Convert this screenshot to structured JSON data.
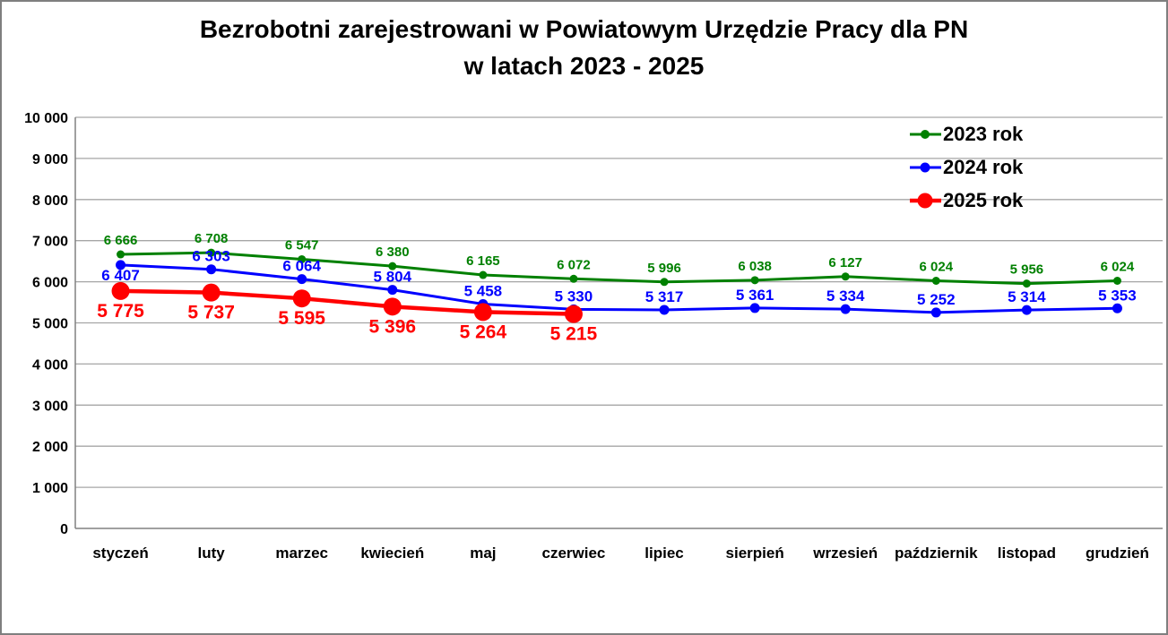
{
  "title": {
    "line1": "Bezrobotni zarejestrowani w Powiatowym Urzędzie Pracy dla PN",
    "line2": "w latach 2023 - 2025"
  },
  "chart_data": {
    "type": "line",
    "title": "Bezrobotni zarejestrowani w Powiatowym Urzędzie Pracy dla PN w latach 2023 - 2025",
    "categories": [
      "styczeń",
      "luty",
      "marzec",
      "kwiecień",
      "maj",
      "czerwiec",
      "lipiec",
      "sierpień",
      "wrzesień",
      "październik",
      "listopad",
      "grudzień"
    ],
    "series": [
      {
        "name": "2023 rok",
        "color": "#008000",
        "values": [
          6666,
          6708,
          6547,
          6380,
          6165,
          6072,
          5996,
          6038,
          6127,
          6024,
          5956,
          6024
        ]
      },
      {
        "name": "2024 rok",
        "color": "#0000ff",
        "values": [
          6407,
          6303,
          6064,
          5804,
          5458,
          5330,
          5317,
          5361,
          5334,
          5252,
          5314,
          5353
        ]
      },
      {
        "name": "2025 rok",
        "color": "#ff0000",
        "values": [
          5775,
          5737,
          5595,
          5396,
          5264,
          5215
        ]
      }
    ],
    "ylim": [
      0,
      10000
    ],
    "ytick_step": 1000,
    "ytick_labels": [
      "0",
      "1 000",
      "2 000",
      "3 000",
      "4 000",
      "5 000",
      "6 000",
      "7 000",
      "8 000",
      "9 000",
      "10 000"
    ],
    "grid": "horizontal",
    "legend_position": "top-right",
    "data_labels": true,
    "number_format": "space-thousands",
    "colors": {
      "gridline": "#a6a6a6",
      "axis": "#808080",
      "tick_label": "#000000",
      "background": "#ffffff",
      "page_border": "#7f7f7f"
    }
  }
}
